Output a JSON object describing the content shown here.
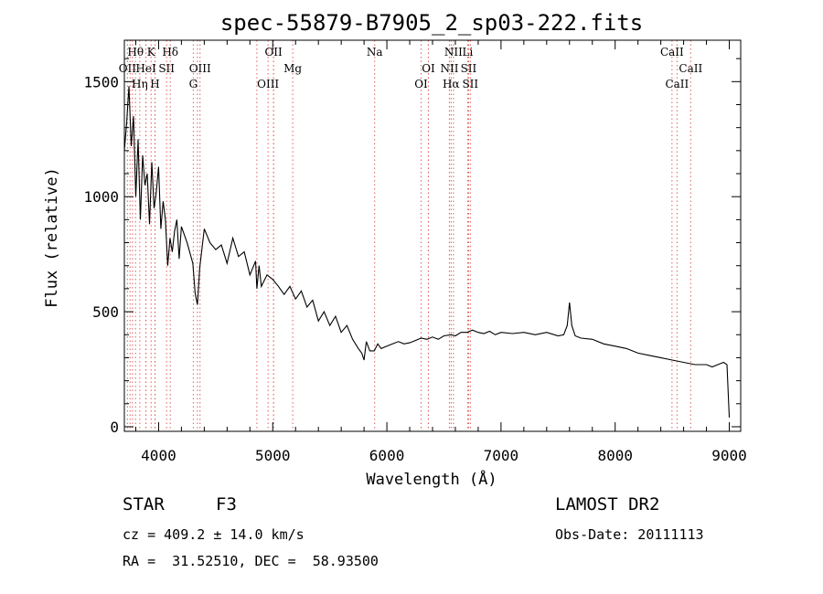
{
  "chart_data": {
    "type": "line",
    "title": "spec-55879-B7905_2_sp03-222.fits",
    "xlabel": "Wavelength (Å)",
    "ylabel": "Flux (relative)",
    "xlim": [
      3700,
      9100
    ],
    "ylim": [
      -20,
      1680
    ],
    "x_ticks": [
      4000,
      5000,
      6000,
      7000,
      8000,
      9000
    ],
    "y_ticks": [
      0,
      500,
      1000,
      1500
    ],
    "grid": false,
    "series": [
      {
        "x": [
          3700,
          3720,
          3740,
          3760,
          3780,
          3800,
          3820,
          3840,
          3860,
          3880,
          3900,
          3920,
          3940,
          3960,
          3980,
          4000,
          4020,
          4040,
          4060,
          4080,
          4100,
          4120,
          4140,
          4160,
          4180,
          4200,
          4250,
          4300,
          4320,
          4340,
          4360,
          4400,
          4450,
          4500,
          4550,
          4600,
          4650,
          4700,
          4750,
          4800,
          4850,
          4861,
          4880,
          4900,
          4950,
          5000,
          5050,
          5100,
          5150,
          5200,
          5250,
          5300,
          5350,
          5400,
          5450,
          5500,
          5550,
          5600,
          5650,
          5700,
          5750,
          5780,
          5800,
          5820,
          5850,
          5890,
          5920,
          5950,
          6000,
          6050,
          6100,
          6150,
          6200,
          6250,
          6300,
          6350,
          6400,
          6450,
          6500,
          6563,
          6600,
          6650,
          6700,
          6750,
          6800,
          6850,
          6900,
          6950,
          7000,
          7100,
          7200,
          7300,
          7400,
          7500,
          7550,
          7580,
          7600,
          7620,
          7650,
          7700,
          7800,
          7900,
          8000,
          8100,
          8200,
          8300,
          8400,
          8500,
          8600,
          8700,
          8800,
          8850,
          8900,
          8950,
          8980,
          9000
        ],
        "values": [
          1200,
          1320,
          1480,
          1220,
          1350,
          1000,
          1250,
          900,
          1180,
          1050,
          1100,
          880,
          1150,
          950,
          1020,
          1130,
          860,
          980,
          900,
          700,
          820,
          760,
          850,
          900,
          730,
          870,
          800,
          710,
          580,
          530,
          690,
          860,
          800,
          770,
          790,
          710,
          820,
          740,
          760,
          660,
          720,
          600,
          700,
          610,
          660,
          640,
          610,
          575,
          610,
          555,
          590,
          520,
          550,
          460,
          500,
          440,
          480,
          410,
          440,
          380,
          340,
          320,
          290,
          370,
          330,
          330,
          360,
          340,
          350,
          360,
          370,
          360,
          365,
          375,
          385,
          380,
          390,
          380,
          395,
          400,
          395,
          410,
          410,
          420,
          410,
          405,
          415,
          400,
          410,
          405,
          410,
          400,
          410,
          395,
          400,
          440,
          540,
          440,
          395,
          385,
          380,
          360,
          350,
          340,
          320,
          310,
          300,
          290,
          280,
          270,
          270,
          260,
          270,
          280,
          270,
          40
        ]
      }
    ],
    "line_markers": [
      {
        "label": "Hθ",
        "x": 3798,
        "row": 0
      },
      {
        "label": "K",
        "x": 3934,
        "row": 0
      },
      {
        "label": "Hδ",
        "x": 4102,
        "row": 0
      },
      {
        "label": "OII",
        "x": 5007,
        "row": 0
      },
      {
        "label": "Na",
        "x": 5893,
        "row": 0
      },
      {
        "label": "NII",
        "x": 6583,
        "row": 0
      },
      {
        "label": "Li",
        "x": 6708,
        "row": 0
      },
      {
        "label": "CaII",
        "x": 8498,
        "row": 0
      },
      {
        "label": "OII",
        "x": 3727,
        "row": 1
      },
      {
        "label": "HeI",
        "x": 3889,
        "row": 1
      },
      {
        "label": "SII",
        "x": 4070,
        "row": 1
      },
      {
        "label": "OIII",
        "x": 4363,
        "row": 1
      },
      {
        "label": "Mg",
        "x": 5175,
        "row": 1
      },
      {
        "label": "OI",
        "x": 6364,
        "row": 1
      },
      {
        "label": "NII",
        "x": 6548,
        "row": 1
      },
      {
        "label": "SII",
        "x": 6716,
        "row": 1
      },
      {
        "label": "CaII",
        "x": 8662,
        "row": 1
      },
      {
        "label": "Hη",
        "x": 3835,
        "row": 2
      },
      {
        "label": "H",
        "x": 3968,
        "row": 2
      },
      {
        "label": "G",
        "x": 4304,
        "row": 2
      },
      {
        "label": "OIII",
        "x": 4959,
        "row": 2
      },
      {
        "label": "OI",
        "x": 6300,
        "row": 2
      },
      {
        "label": "Hα",
        "x": 6563,
        "row": 2
      },
      {
        "label": "SII",
        "x": 6731,
        "row": 2
      },
      {
        "label": "CaII",
        "x": 8542,
        "row": 2
      }
    ],
    "extra_marker_lines": [
      3750,
      3771,
      3889,
      3970,
      4340,
      4861,
      5007,
      6363,
      6548
    ]
  },
  "info": {
    "object_type": "STAR",
    "subclass": "F3",
    "survey": "LAMOST DR2",
    "cz": "cz = 409.2 ± 14.0 km/s",
    "obs_date": "Obs-Date: 20111113",
    "coords": "RA =  31.52510, DEC =  58.93500"
  },
  "colors": {
    "spectrum": "#000000",
    "marker_lines": "#e06060",
    "axes": "#000000"
  }
}
